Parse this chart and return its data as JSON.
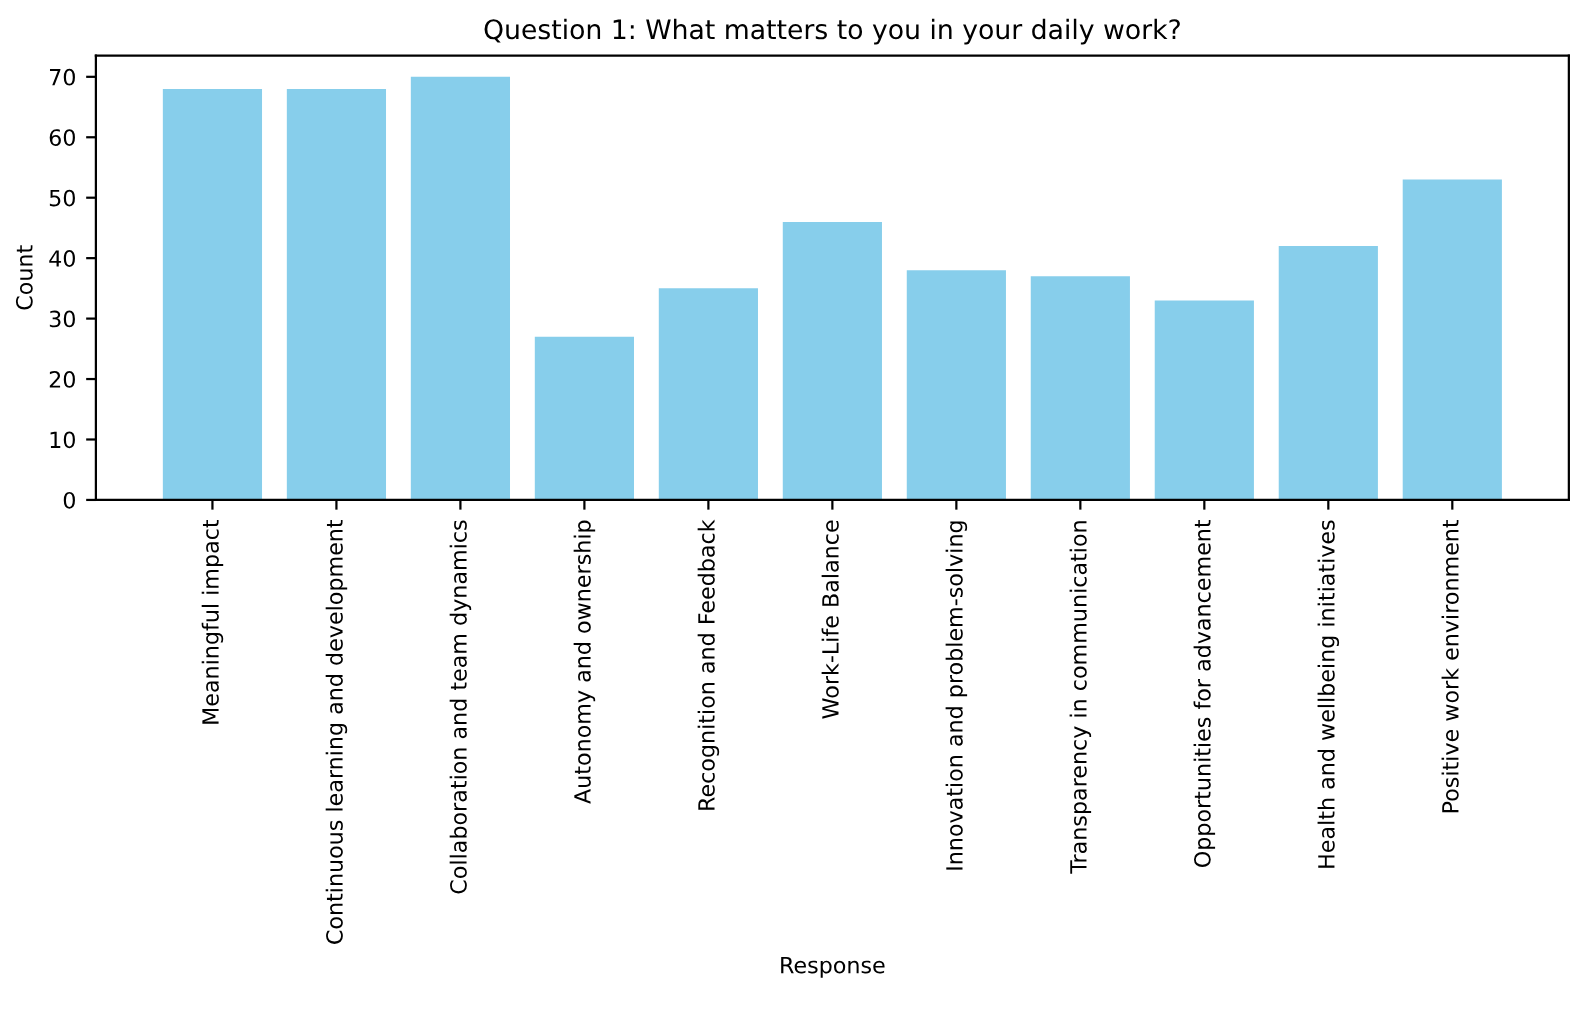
{
  "chart_data": {
    "type": "bar",
    "title": "Question 1: What matters to you in your daily work?",
    "xlabel": "Response",
    "ylabel": "Count",
    "categories": [
      "Meaningful impact",
      "Continuous learning and development",
      "Collaboration and team dynamics",
      "Autonomy and ownership",
      "Recognition and Feedback",
      "Work-Life Balance",
      "Innovation and problem-solving",
      "Transparency in communication",
      "Opportunities for advancement",
      "Health and wellbeing initiatives",
      "Positive work environment"
    ],
    "values": [
      68,
      68,
      70,
      27,
      35,
      46,
      38,
      37,
      33,
      42,
      53
    ],
    "color": "#87ceeb",
    "ylim": [
      0,
      73.5
    ],
    "yticks": [
      0,
      10,
      20,
      30,
      40,
      50,
      60,
      70
    ],
    "grid": false
  }
}
